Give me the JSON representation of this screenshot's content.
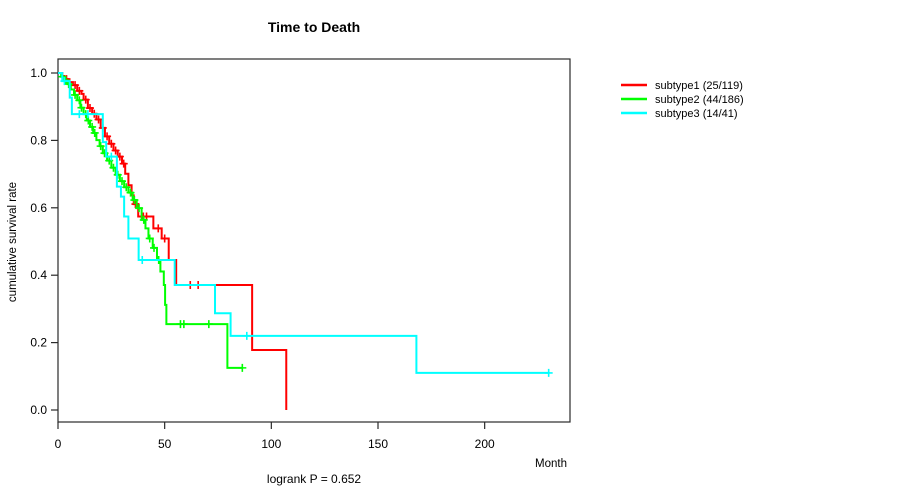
{
  "chart_data": {
    "type": "line",
    "variant": "kaplan-meier-step-curves",
    "title": "Time to Death",
    "xlabel": "Month",
    "ylabel": "cumulative survival rate",
    "footer": "logrank P = 0.652",
    "xlim": [
      0,
      240
    ],
    "ylim": [
      0.0,
      1.0
    ],
    "xticks": [
      0,
      50,
      100,
      150,
      200
    ],
    "yticks": [
      0.0,
      0.2,
      0.4,
      0.6,
      0.8,
      1.0
    ],
    "grid": false,
    "legend_position": "right-outside",
    "background_color": "#ffffff",
    "box_color": "#2a2a2a",
    "series": [
      {
        "name": "subtype1 (25/119)",
        "color": "#ff0000",
        "end_month": 107,
        "steps": [
          [
            0,
            1.0
          ],
          [
            2,
            0.991
          ],
          [
            3,
            0.982
          ],
          [
            5,
            0.973
          ],
          [
            7,
            0.964
          ],
          [
            9,
            0.947
          ],
          [
            11,
            0.938
          ],
          [
            12,
            0.921
          ],
          [
            14,
            0.896
          ],
          [
            16,
            0.879
          ],
          [
            18,
            0.862
          ],
          [
            20,
            0.837
          ],
          [
            22,
            0.812
          ],
          [
            24,
            0.79
          ],
          [
            26,
            0.77
          ],
          [
            28,
            0.752
          ],
          [
            30,
            0.731
          ],
          [
            31.5,
            0.701
          ],
          [
            33,
            0.667
          ],
          [
            34.5,
            0.637
          ],
          [
            35.5,
            0.611
          ],
          [
            37.6,
            0.574
          ],
          [
            44.7,
            0.539
          ],
          [
            48.6,
            0.509
          ],
          [
            51.9,
            0.445
          ],
          [
            55.4,
            0.371
          ],
          [
            91,
            0.178
          ],
          [
            107,
            0.0
          ]
        ],
        "censors": [
          [
            4,
            0.982
          ],
          [
            8,
            0.964
          ],
          [
            10,
            0.947
          ],
          [
            13,
            0.921
          ],
          [
            15,
            0.896
          ],
          [
            17,
            0.879
          ],
          [
            19,
            0.862
          ],
          [
            21,
            0.837
          ],
          [
            23,
            0.812
          ],
          [
            25,
            0.79
          ],
          [
            27,
            0.77
          ],
          [
            29,
            0.752
          ],
          [
            30.8,
            0.731
          ],
          [
            36.3,
            0.611
          ],
          [
            40,
            0.574
          ],
          [
            41.5,
            0.574
          ],
          [
            47,
            0.539
          ],
          [
            50,
            0.509
          ],
          [
            62,
            0.371
          ],
          [
            65.7,
            0.371
          ]
        ]
      },
      {
        "name": "subtype2 (44/186)",
        "color": "#00ff00",
        "end_month": 86.4,
        "steps": [
          [
            0,
            1.0
          ],
          [
            1.5,
            0.989
          ],
          [
            3,
            0.978
          ],
          [
            4.5,
            0.967
          ],
          [
            6,
            0.951
          ],
          [
            7.5,
            0.935
          ],
          [
            9,
            0.919
          ],
          [
            10.5,
            0.897
          ],
          [
            12,
            0.878
          ],
          [
            13.5,
            0.859
          ],
          [
            15,
            0.84
          ],
          [
            16.5,
            0.822
          ],
          [
            18,
            0.801
          ],
          [
            19.5,
            0.783
          ],
          [
            21,
            0.762
          ],
          [
            23,
            0.74
          ],
          [
            25,
            0.719
          ],
          [
            27,
            0.698
          ],
          [
            29,
            0.679
          ],
          [
            31,
            0.661
          ],
          [
            33,
            0.645
          ],
          [
            35,
            0.623
          ],
          [
            36.9,
            0.599
          ],
          [
            39.2,
            0.564
          ],
          [
            41,
            0.539
          ],
          [
            42.4,
            0.509
          ],
          [
            44.4,
            0.481
          ],
          [
            46.4,
            0.445
          ],
          [
            48,
            0.411
          ],
          [
            49.6,
            0.371
          ],
          [
            50.2,
            0.312
          ],
          [
            50.8,
            0.255
          ],
          [
            79.4,
            0.125
          ]
        ],
        "censors": [
          [
            2,
            0.989
          ],
          [
            3.6,
            0.978
          ],
          [
            5,
            0.967
          ],
          [
            8,
            0.935
          ],
          [
            10,
            0.919
          ],
          [
            11,
            0.897
          ],
          [
            13,
            0.878
          ],
          [
            14.2,
            0.859
          ],
          [
            16,
            0.84
          ],
          [
            17.2,
            0.822
          ],
          [
            20,
            0.783
          ],
          [
            21.8,
            0.762
          ],
          [
            24,
            0.74
          ],
          [
            26,
            0.719
          ],
          [
            28,
            0.698
          ],
          [
            30,
            0.679
          ],
          [
            32,
            0.661
          ],
          [
            34,
            0.645
          ],
          [
            35.8,
            0.623
          ],
          [
            38,
            0.599
          ],
          [
            40.2,
            0.564
          ],
          [
            43,
            0.509
          ],
          [
            45,
            0.481
          ],
          [
            47.2,
            0.445
          ],
          [
            57.4,
            0.255
          ],
          [
            59,
            0.255
          ],
          [
            70.7,
            0.255
          ],
          [
            86.4,
            0.125
          ]
        ]
      },
      {
        "name": "subtype3 (14/41)",
        "color": "#00ffff",
        "end_month": 230,
        "steps": [
          [
            0,
            1.0
          ],
          [
            2,
            0.976
          ],
          [
            5.5,
            0.927
          ],
          [
            6.5,
            0.878
          ],
          [
            21,
            0.795
          ],
          [
            22.6,
            0.752
          ],
          [
            27.6,
            0.663
          ],
          [
            29.5,
            0.633
          ],
          [
            31,
            0.574
          ],
          [
            33,
            0.509
          ],
          [
            37.8,
            0.445
          ],
          [
            54.7,
            0.371
          ],
          [
            73.6,
            0.287
          ],
          [
            80.9,
            0.22
          ],
          [
            168,
            0.11
          ]
        ],
        "censors": [
          [
            3,
            0.976
          ],
          [
            10,
            0.878
          ],
          [
            14,
            0.878
          ],
          [
            25,
            0.752
          ],
          [
            39.5,
            0.445
          ],
          [
            88.5,
            0.22
          ],
          [
            230,
            0.11
          ]
        ]
      }
    ]
  }
}
